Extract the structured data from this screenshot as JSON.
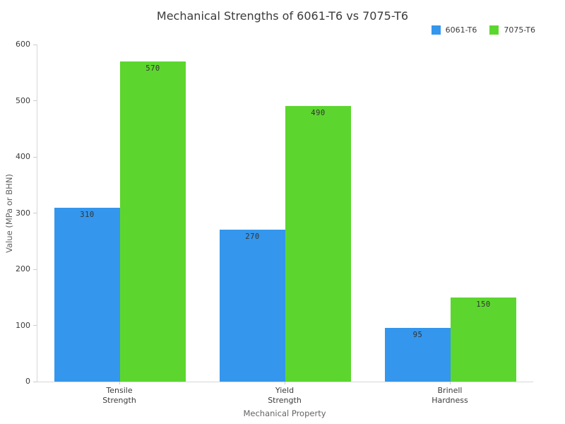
{
  "chart_data": {
    "type": "bar",
    "title": "Mechanical Strengths of 6061-T6 vs 7075-T6",
    "xlabel": "Mechanical Property",
    "ylabel": "Value (MPa or BHN)",
    "categories": [
      "Tensile\nStrength",
      "Yield\nStrength",
      "Brinell\nHardness"
    ],
    "series": [
      {
        "name": "6061-T6",
        "color": "#3496EC",
        "values": [
          310,
          270,
          95
        ]
      },
      {
        "name": "7075-T6",
        "color": "#5CD62E",
        "values": [
          570,
          490,
          150
        ]
      }
    ],
    "ylim": [
      0,
      600
    ],
    "yticks": [
      0,
      100,
      200,
      300,
      400,
      500,
      600
    ],
    "grid": false,
    "legend_position": "top-right",
    "value_labels_inside_bar_top": true
  },
  "colors": {
    "background": "#ffffff",
    "axis_line": "#d6d6d6",
    "tick_mark": "#cccccc",
    "text_dark": "#3b3b3b",
    "text_muted": "#646464",
    "bar_value_text": "#333333"
  }
}
